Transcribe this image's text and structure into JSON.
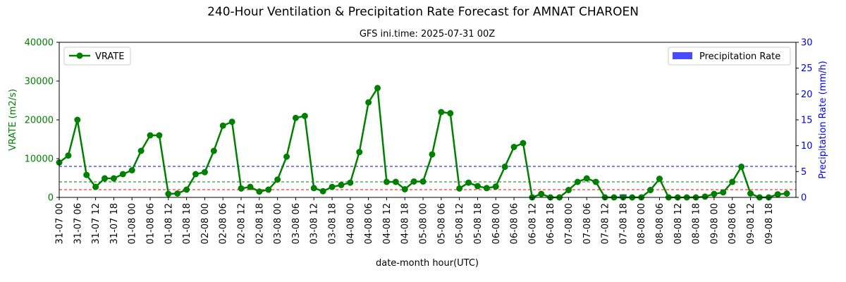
{
  "chart_data": {
    "type": "line",
    "title": "240-Hour Ventilation & Precipitation Rate Forecast for AMNAT CHAROEN",
    "subtitle": "GFS ini.time: 2025-07-31 00Z",
    "xlabel": "date-month hour(UTC)",
    "ylabel_left": "VRATE (m2/s)",
    "ylabel_right": "Precipitation Rate (mm/h)",
    "ylim_left": [
      0,
      40000
    ],
    "ylim_right": [
      0,
      30
    ],
    "yticks_left": [
      "0",
      "10000",
      "20000",
      "30000",
      "40000"
    ],
    "yticks_right": [
      "0",
      "5",
      "10",
      "15",
      "20",
      "25",
      "30"
    ],
    "x_labels": [
      "31-07 00",
      "31-07 06",
      "31-07 12",
      "31-07 18",
      "01-08 00",
      "01-08 06",
      "01-08 12",
      "01-08 18",
      "02-08 00",
      "02-08 06",
      "02-08 12",
      "02-08 18",
      "03-08 00",
      "03-08 06",
      "03-08 12",
      "03-08 18",
      "04-08 00",
      "04-08 06",
      "04-08 12",
      "04-08 18",
      "05-08 00",
      "05-08 06",
      "05-08 12",
      "05-08 18",
      "06-08 00",
      "06-08 06",
      "06-08 12",
      "06-08 18",
      "07-08 00",
      "07-08 06",
      "07-08 12",
      "07-08 18",
      "08-08 00",
      "08-08 06",
      "08-08 12",
      "08-08 18",
      "09-08 00",
      "09-08 06",
      "09-08 12",
      "09-08 18"
    ],
    "legend_left": "VRATE",
    "legend_right": "Precipitation Rate",
    "legend_left_position": "upper-left",
    "legend_right_position": "upper-right",
    "vrate_series": {
      "name": "VRATE",
      "color": "#008000",
      "values": [
        9000,
        10800,
        20000,
        5800,
        2700,
        4900,
        4900,
        6000,
        7000,
        12000,
        16000,
        16000,
        900,
        1000,
        2000,
        6000,
        6500,
        12000,
        18500,
        19500,
        2300,
        2700,
        1500,
        2000,
        4600,
        10500,
        20500,
        21000,
        2400,
        1600,
        2700,
        3200,
        3800,
        11700,
        24500,
        28200,
        4000,
        4000,
        2100,
        4100,
        4100,
        11100,
        22000,
        21700,
        2300,
        3800,
        2900,
        2400,
        2800,
        7900,
        13000,
        14000,
        0,
        900,
        0,
        0,
        1900,
        4000,
        4900,
        4000,
        0,
        0,
        0,
        0,
        0,
        1900,
        4800,
        0,
        0,
        0,
        0,
        200,
        900,
        1300,
        4000,
        7900,
        1000,
        0,
        0,
        800,
        1000
      ]
    },
    "precip_bar": {
      "name": "Precipitation Rate",
      "color": "#4a4aff",
      "index": 62,
      "value": 0.6
    },
    "hlines": [
      {
        "axis": "right",
        "value": 6,
        "color": "#0000ff"
      },
      {
        "axis": "left",
        "value": 4000,
        "color": "#008000"
      },
      {
        "axis": "left",
        "value": 2000,
        "color": "#ff0000"
      }
    ],
    "colors": {
      "left_axis": "#008000",
      "right_axis": "#0000ff"
    }
  }
}
